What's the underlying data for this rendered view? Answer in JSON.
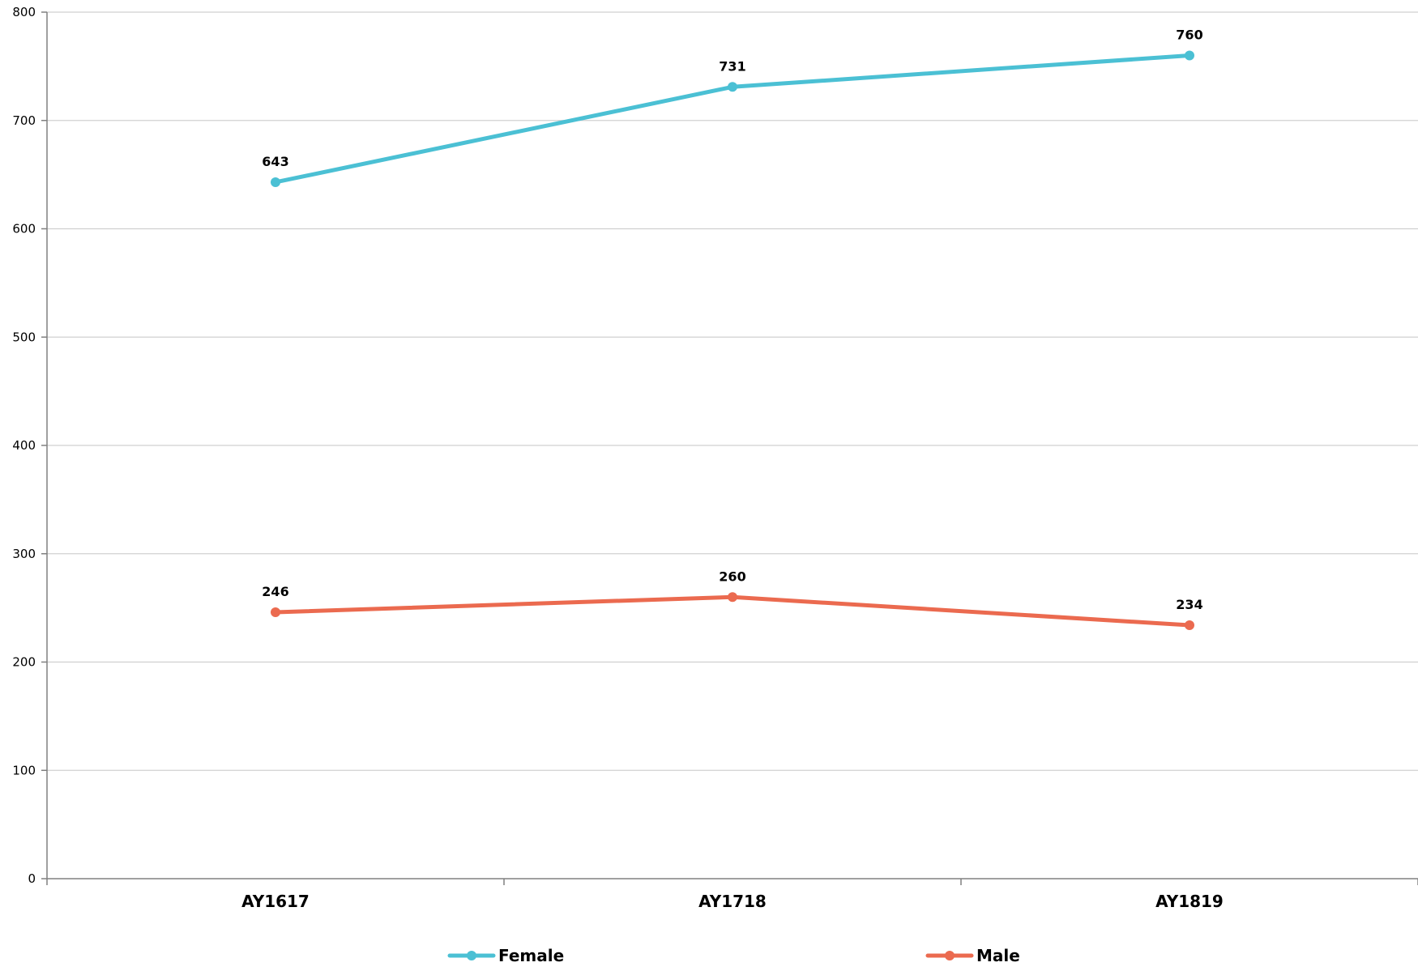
{
  "chart_data": {
    "type": "line",
    "categories": [
      "AY1617",
      "AY1718",
      "AY1819"
    ],
    "series": [
      {
        "name": "Female",
        "values": [
          643,
          731,
          760
        ],
        "color": "#4BC0D4"
      },
      {
        "name": "Male",
        "values": [
          246,
          260,
          234
        ],
        "color": "#EB6A4F"
      }
    ],
    "ylim": [
      0,
      800
    ],
    "yticks": [
      0,
      100,
      200,
      300,
      400,
      500,
      600,
      700,
      800
    ],
    "grid": true,
    "legend_position": "bottom",
    "data_labels": true
  }
}
